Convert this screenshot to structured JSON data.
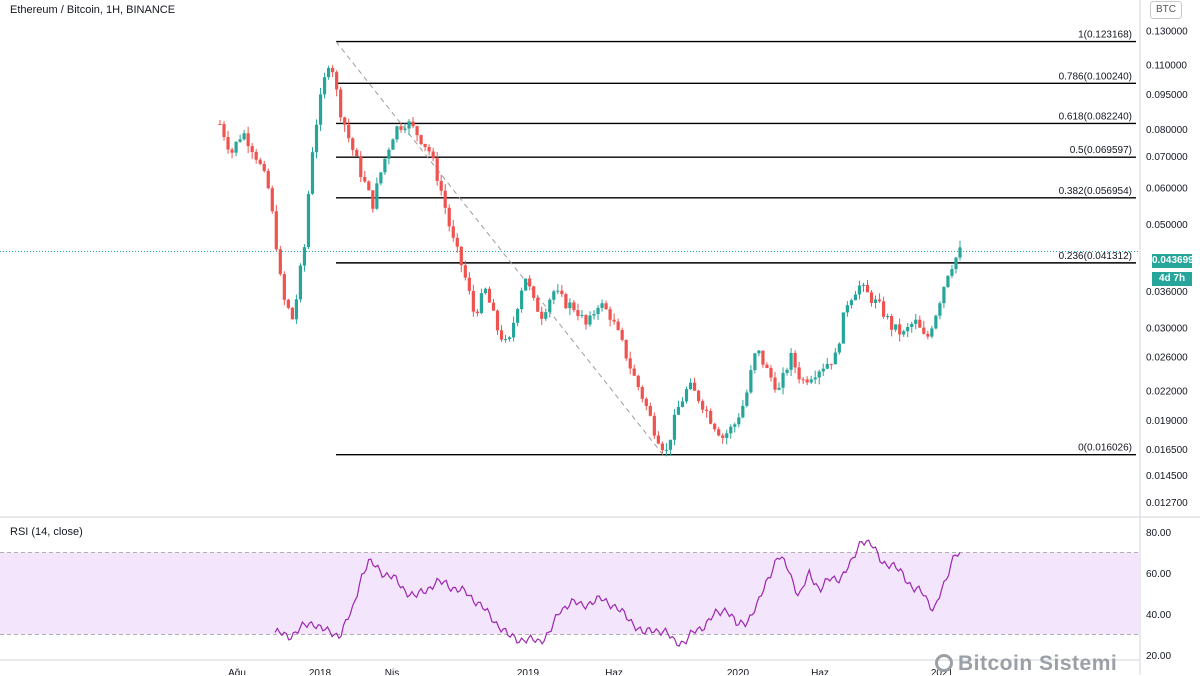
{
  "header": {
    "title": "Ethereum / Bitcoin, 1H, BINANCE",
    "currency_badge": "BTC"
  },
  "price_tag": {
    "value": "0.043699",
    "countdown": "4d 7h",
    "color": "#26a69a"
  },
  "rsi": {
    "title": "RSI (14, close)",
    "line_color": "#9c27b0",
    "band_color": "#f3e5fb",
    "upper": 70,
    "lower": 30,
    "ticks": [
      "80.00",
      "60.00",
      "40.00",
      "20.00"
    ]
  },
  "watermark": "Bitcoin Sistemi",
  "colors": {
    "up": "#26a69a",
    "down": "#ef5350",
    "fib_line": "#000000",
    "trend_line": "#9e9e9e"
  },
  "chart_data": [
    {
      "type": "candlestick",
      "title": "Ethereum / Bitcoin, 1H, BINANCE",
      "x_tick_labels": [
        "Ağu",
        "2018",
        "Nis",
        "2019",
        "Haz",
        "2020",
        "Haz",
        "2021"
      ],
      "y_tick_labels": [
        "0.130000",
        "0.110000",
        "0.095000",
        "0.080000",
        "0.070000",
        "0.060000",
        "0.050000",
        "0.036000",
        "0.030000",
        "0.026000",
        "0.022000",
        "0.019000",
        "0.016500",
        "0.014500",
        "0.012700"
      ],
      "fibonacci_levels": [
        {
          "ratio": "1",
          "value": 0.123168,
          "label": "1(0.123168)"
        },
        {
          "ratio": "0.786",
          "value": 0.10024,
          "label": "0.786(0.100240)"
        },
        {
          "ratio": "0.618",
          "value": 0.08224,
          "label": "0.618(0.082240)"
        },
        {
          "ratio": "0.5",
          "value": 0.069597,
          "label": "0.5(0.069597)"
        },
        {
          "ratio": "0.382",
          "value": 0.056954,
          "label": "0.382(0.056954)"
        },
        {
          "ratio": "0.236",
          "value": 0.041312,
          "label": "0.236(0.041312)"
        },
        {
          "ratio": "0",
          "value": 0.016026,
          "label": "0(0.016026)"
        }
      ],
      "last_price": 0.043699,
      "price_path": [
        [
          0.0,
          0.082
        ],
        [
          0.04,
          0.071
        ],
        [
          0.08,
          0.079
        ],
        [
          0.12,
          0.072
        ],
        [
          0.17,
          0.06
        ],
        [
          0.22,
          0.035
        ],
        [
          0.26,
          0.031
        ],
        [
          0.3,
          0.045
        ],
        [
          0.33,
          0.075
        ],
        [
          0.36,
          0.095
        ],
        [
          0.39,
          0.115
        ],
        [
          0.42,
          0.09
        ],
        [
          0.46,
          0.075
        ],
        [
          0.5,
          0.064
        ],
        [
          0.54,
          0.055
        ],
        [
          0.58,
          0.068
        ],
        [
          0.62,
          0.08
        ],
        [
          0.66,
          0.083
        ],
        [
          0.7,
          0.078
        ],
        [
          0.74,
          0.072
        ],
        [
          0.78,
          0.06
        ],
        [
          0.82,
          0.047
        ],
        [
          0.86,
          0.04
        ],
        [
          0.9,
          0.032
        ],
        [
          0.94,
          0.036
        ],
        [
          0.98,
          0.03
        ],
        [
          1.02,
          0.027
        ],
        [
          1.05,
          0.033
        ],
        [
          1.08,
          0.039
        ],
        [
          1.11,
          0.034
        ],
        [
          1.14,
          0.032
        ],
        [
          1.18,
          0.036
        ],
        [
          1.22,
          0.034
        ],
        [
          1.26,
          0.033
        ],
        [
          1.3,
          0.03
        ],
        [
          1.34,
          0.034
        ],
        [
          1.38,
          0.032
        ],
        [
          1.42,
          0.028
        ],
        [
          1.46,
          0.024
        ],
        [
          1.5,
          0.021
        ],
        [
          1.54,
          0.018
        ],
        [
          1.58,
          0.0162
        ],
        [
          1.62,
          0.02
        ],
        [
          1.66,
          0.0225
        ],
        [
          1.7,
          0.021
        ],
        [
          1.74,
          0.019
        ],
        [
          1.78,
          0.0175
        ],
        [
          1.82,
          0.0185
        ],
        [
          1.86,
          0.021
        ],
        [
          1.9,
          0.027
        ],
        [
          1.94,
          0.024
        ],
        [
          1.98,
          0.022
        ],
        [
          2.02,
          0.026
        ],
        [
          2.06,
          0.023
        ],
        [
          2.1,
          0.024
        ],
        [
          2.14,
          0.025
        ],
        [
          2.18,
          0.026
        ],
        [
          2.22,
          0.034
        ],
        [
          2.26,
          0.037
        ],
        [
          2.3,
          0.035
        ],
        [
          2.34,
          0.033
        ],
        [
          2.38,
          0.03
        ],
        [
          2.42,
          0.029
        ],
        [
          2.46,
          0.031
        ],
        [
          2.5,
          0.028
        ],
        [
          2.54,
          0.033
        ],
        [
          2.58,
          0.04
        ],
        [
          2.62,
          0.0437
        ]
      ]
    },
    {
      "type": "line",
      "title": "RSI (14, close)",
      "y_range": [
        20,
        80
      ],
      "rsi_path": [
        [
          0.0,
          31
        ],
        [
          0.05,
          29
        ],
        [
          0.1,
          33
        ],
        [
          0.15,
          36
        ],
        [
          0.2,
          31
        ],
        [
          0.25,
          30
        ],
        [
          0.3,
          42
        ],
        [
          0.33,
          58
        ],
        [
          0.36,
          65
        ],
        [
          0.39,
          63
        ],
        [
          0.42,
          60
        ],
        [
          0.46,
          57
        ],
        [
          0.5,
          52
        ],
        [
          0.54,
          48
        ],
        [
          0.58,
          52
        ],
        [
          0.62,
          55
        ],
        [
          0.66,
          55
        ],
        [
          0.7,
          52
        ],
        [
          0.74,
          50
        ],
        [
          0.78,
          46
        ],
        [
          0.82,
          40
        ],
        [
          0.86,
          35
        ],
        [
          0.9,
          29
        ],
        [
          0.94,
          28
        ],
        [
          0.98,
          27
        ],
        [
          1.02,
          27
        ],
        [
          1.06,
          31
        ],
        [
          1.1,
          42
        ],
        [
          1.14,
          46
        ],
        [
          1.18,
          44
        ],
        [
          1.22,
          46
        ],
        [
          1.26,
          47
        ],
        [
          1.3,
          45
        ],
        [
          1.34,
          40
        ],
        [
          1.38,
          36
        ],
        [
          1.42,
          30
        ],
        [
          1.46,
          33
        ],
        [
          1.5,
          31
        ],
        [
          1.54,
          27
        ],
        [
          1.58,
          26
        ],
        [
          1.62,
          32
        ],
        [
          1.66,
          35
        ],
        [
          1.7,
          40
        ],
        [
          1.74,
          43
        ],
        [
          1.78,
          34
        ],
        [
          1.82,
          37
        ],
        [
          1.86,
          44
        ],
        [
          1.9,
          58
        ],
        [
          1.94,
          68
        ],
        [
          1.98,
          62
        ],
        [
          2.02,
          48
        ],
        [
          2.06,
          60
        ],
        [
          2.1,
          52
        ],
        [
          2.14,
          57
        ],
        [
          2.18,
          58
        ],
        [
          2.22,
          64
        ],
        [
          2.26,
          77
        ],
        [
          2.3,
          73
        ],
        [
          2.34,
          66
        ],
        [
          2.38,
          63
        ],
        [
          2.42,
          60
        ],
        [
          2.46,
          52
        ],
        [
          2.5,
          50
        ],
        [
          2.54,
          42
        ],
        [
          2.58,
          54
        ],
        [
          2.62,
          71
        ],
        [
          2.64,
          68
        ]
      ]
    }
  ]
}
